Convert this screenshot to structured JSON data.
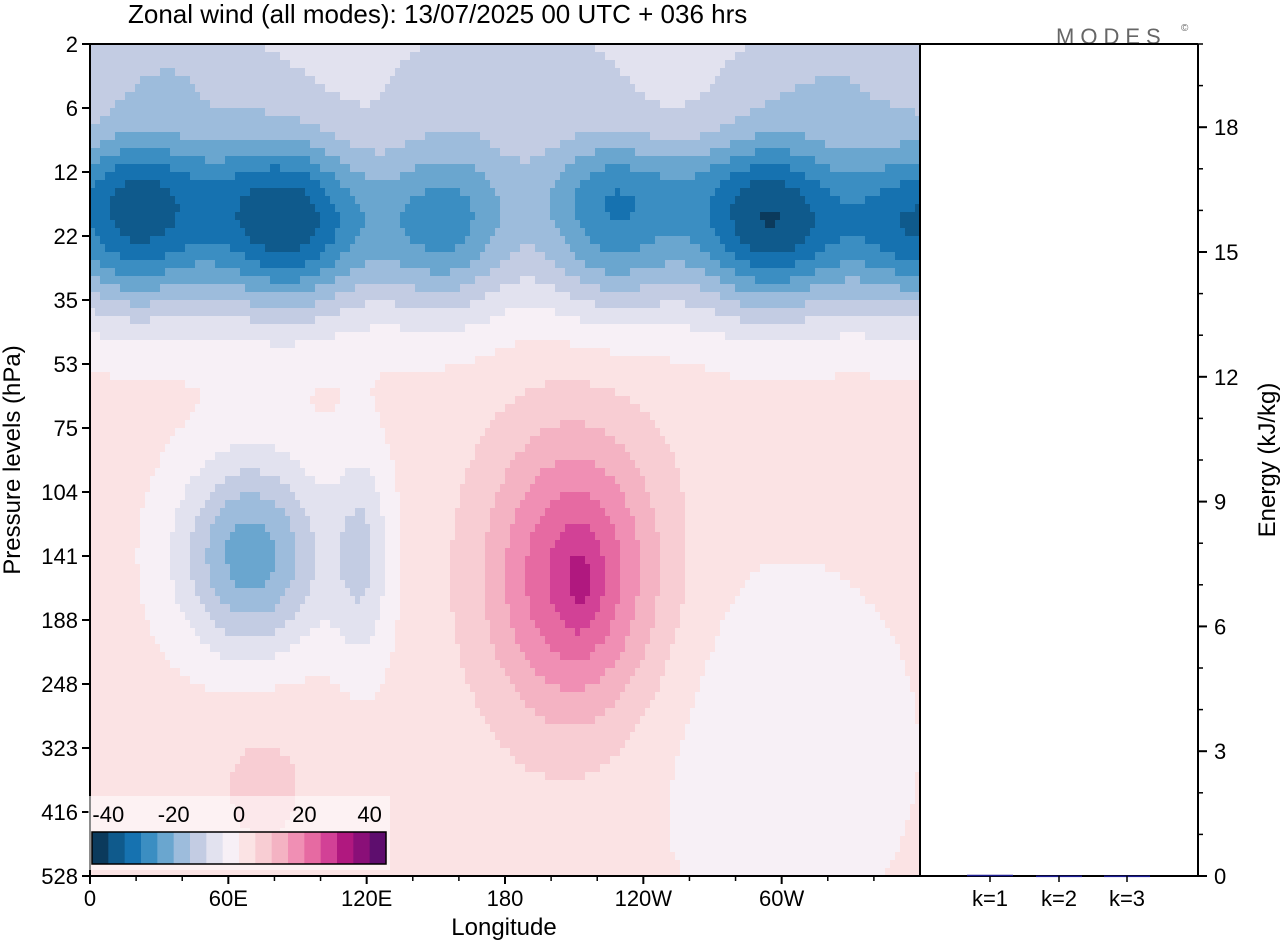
{
  "title": "Zonal wind (all modes):  13/07/2025  00 UTC  + 036 hrs",
  "logo": "MODES",
  "logo_mark": "©",
  "chart_data": [
    {
      "type": "heatmap",
      "variable": "Zonal wind",
      "xlabel": "Longitude",
      "ylabel": "Pressure levels (hPa)",
      "x_ticks": [
        {
          "lon": 0,
          "label": "0"
        },
        {
          "lon": 60,
          "label": "60E"
        },
        {
          "lon": 120,
          "label": "120E"
        },
        {
          "lon": 180,
          "label": "180"
        },
        {
          "lon": 240,
          "label": "120W"
        },
        {
          "lon": 300,
          "label": "60W"
        }
      ],
      "xlim": [
        0,
        360
      ],
      "y_levels": [
        "2",
        "6",
        "12",
        "22",
        "35",
        "53",
        "75",
        "104",
        "141",
        "188",
        "248",
        "323",
        "416",
        "528"
      ],
      "y_axis": "pressure, log-like, 2 hPa at top to 528 hPa at bottom",
      "colorbar": {
        "ticks": [
          "-40",
          "-20",
          "0",
          "20",
          "40"
        ],
        "range": [
          -45,
          45
        ],
        "step": 5,
        "colors": [
          "#0b3a5c",
          "#0f5a8c",
          "#1672b0",
          "#3b8ec2",
          "#6aa6cf",
          "#9dbcdc",
          "#c3cce3",
          "#e2e2ef",
          "#f7f0f6",
          "#fbe3e4",
          "#f8cdd3",
          "#f4b3c3",
          "#f08fb4",
          "#e66aa2",
          "#d24196",
          "#b0187f",
          "#8a0f78",
          "#5e0e6e"
        ]
      },
      "features": [
        {
          "name": "stratospheric easterly band",
          "lon_range": [
            0,
            360
          ],
          "level_range": [
            "6",
            "35"
          ],
          "value": -30,
          "core_value": -35
        },
        {
          "name": "upper easterlies",
          "lon_range": [
            0,
            360
          ],
          "level_range": [
            "2",
            "6"
          ],
          "value": -15
        },
        {
          "name": "tropical easterly jet",
          "lon_center": 70,
          "level_center": "141",
          "value": -25
        },
        {
          "name": "westerly maximum",
          "lon_center": 210,
          "level_center": "141",
          "value": 25,
          "core_value": 30
        }
      ]
    },
    {
      "type": "bar",
      "categories": [
        "k=1",
        "k=2",
        "k=3"
      ],
      "values": [
        0.03,
        0.01,
        0.01
      ],
      "ylabel": "Energy (kJ/kg)",
      "ylim": [
        0,
        20
      ],
      "y_ticks": [
        0,
        3,
        6,
        9,
        12,
        15,
        18
      ],
      "y_minor_step": 1,
      "bar_color": "#1b1b8f"
    }
  ]
}
